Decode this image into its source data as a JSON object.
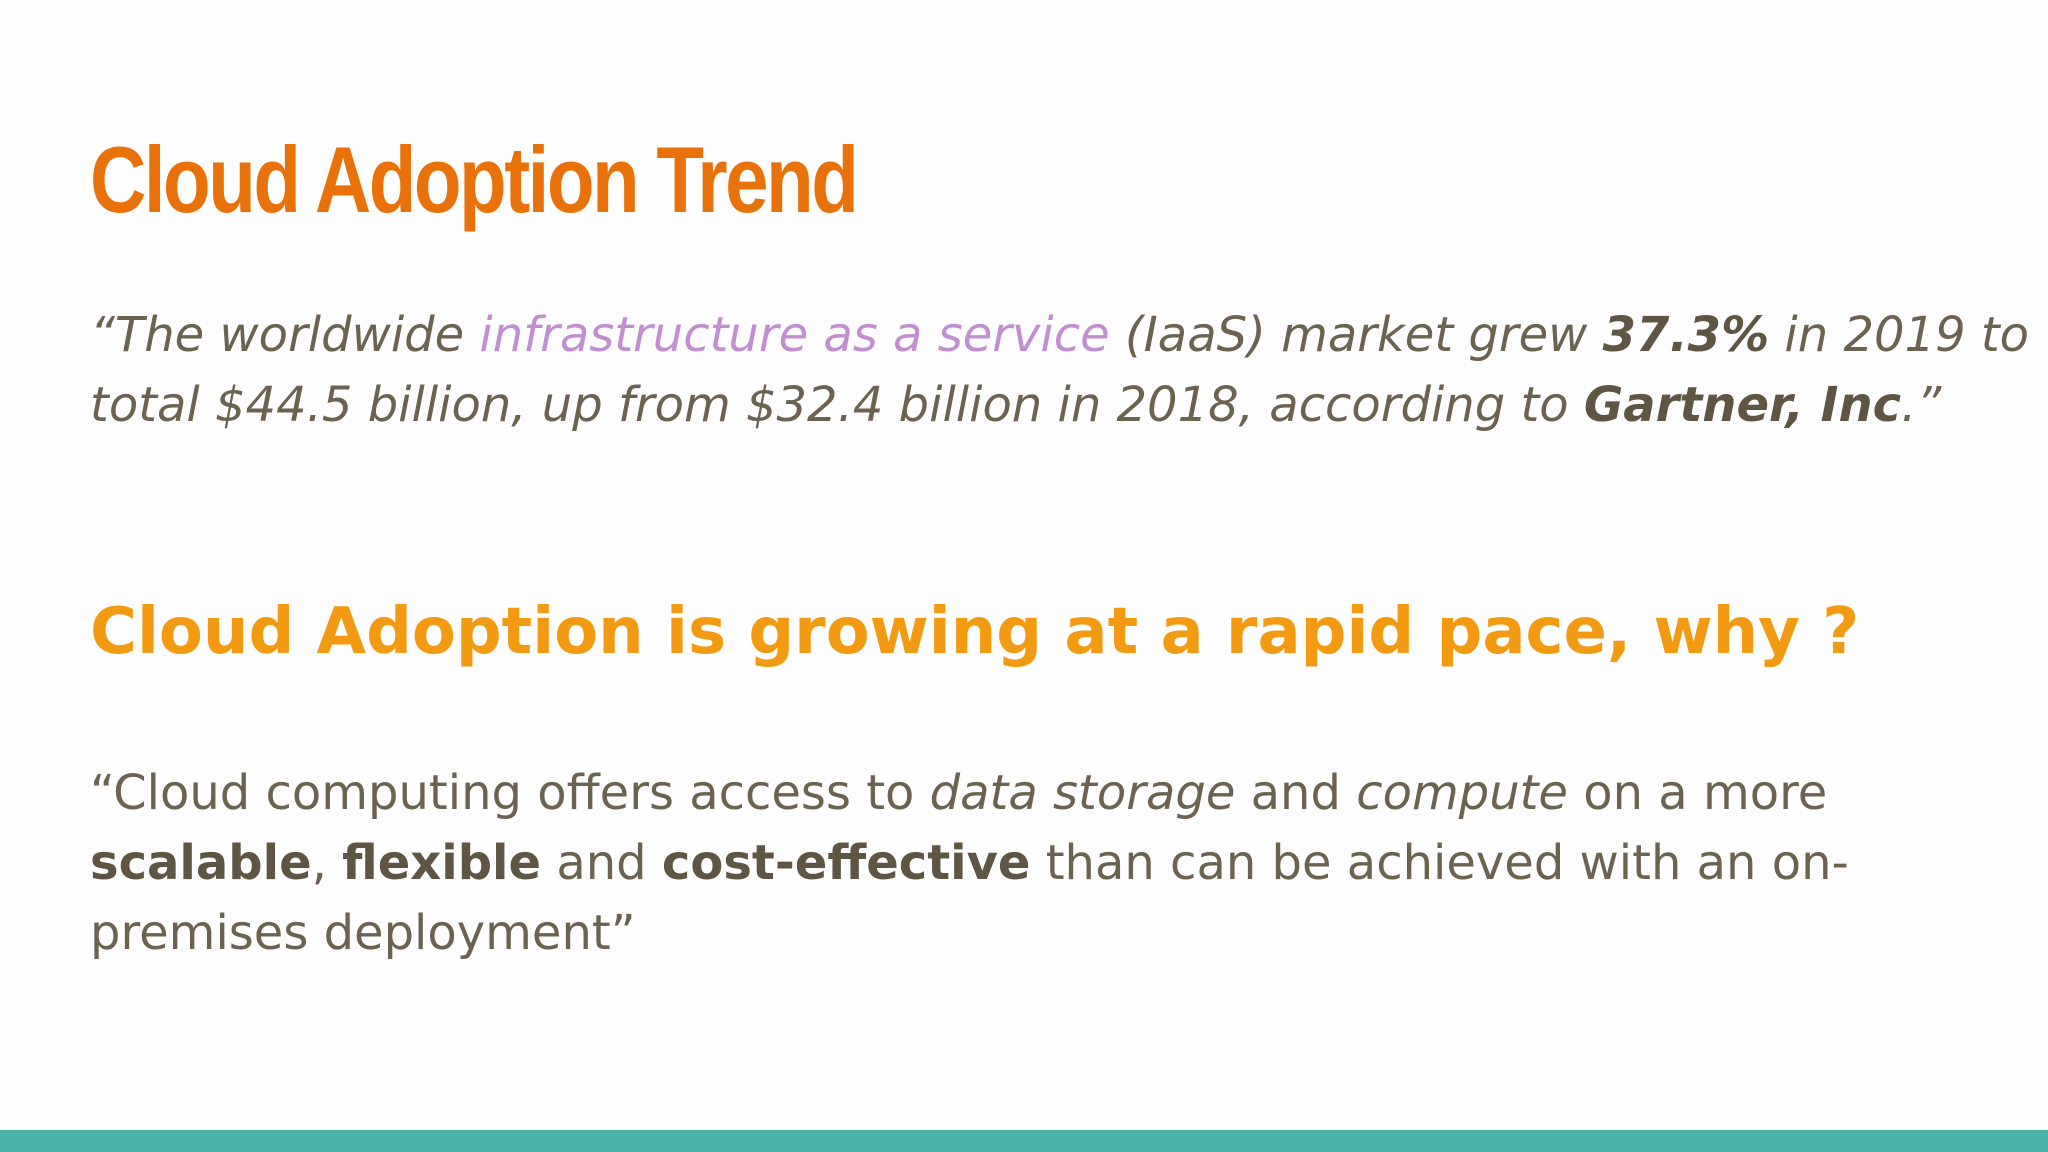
{
  "slide": {
    "title": "Cloud Adoption Trend",
    "quote1": {
      "open_quote": "“",
      "text_a": "The worldwide ",
      "highlight": "infrastructure as a service",
      "text_b": " (IaaS) market grew ",
      "growth": "37.3%",
      "text_c": " in 2019 to",
      "text_d": "total $44.5 billion, up from $32.4 billion in 2018, according to ",
      "source": "Gartner, Inc",
      "close": ".”"
    },
    "subheading": "Cloud Adoption is growing at a rapid pace, why ?",
    "quote2": {
      "text_a": "“Cloud computing offers access to ",
      "term1": "data storage",
      "text_b": " and ",
      "term2": "compute",
      "text_c": " on a more",
      "bold1": "scalable",
      "comma": ", ",
      "bold2": "flexible",
      "text_d": " and ",
      "bold3": "cost-effective",
      "text_e": " than can be achieved with an on-",
      "text_f": "premises deployment”"
    }
  },
  "colors": {
    "title": "#e8710a",
    "highlight": "#c38ed1",
    "subheading": "#f29a12",
    "body": "#6b6350",
    "bottom_bar": "#4db3a8"
  }
}
